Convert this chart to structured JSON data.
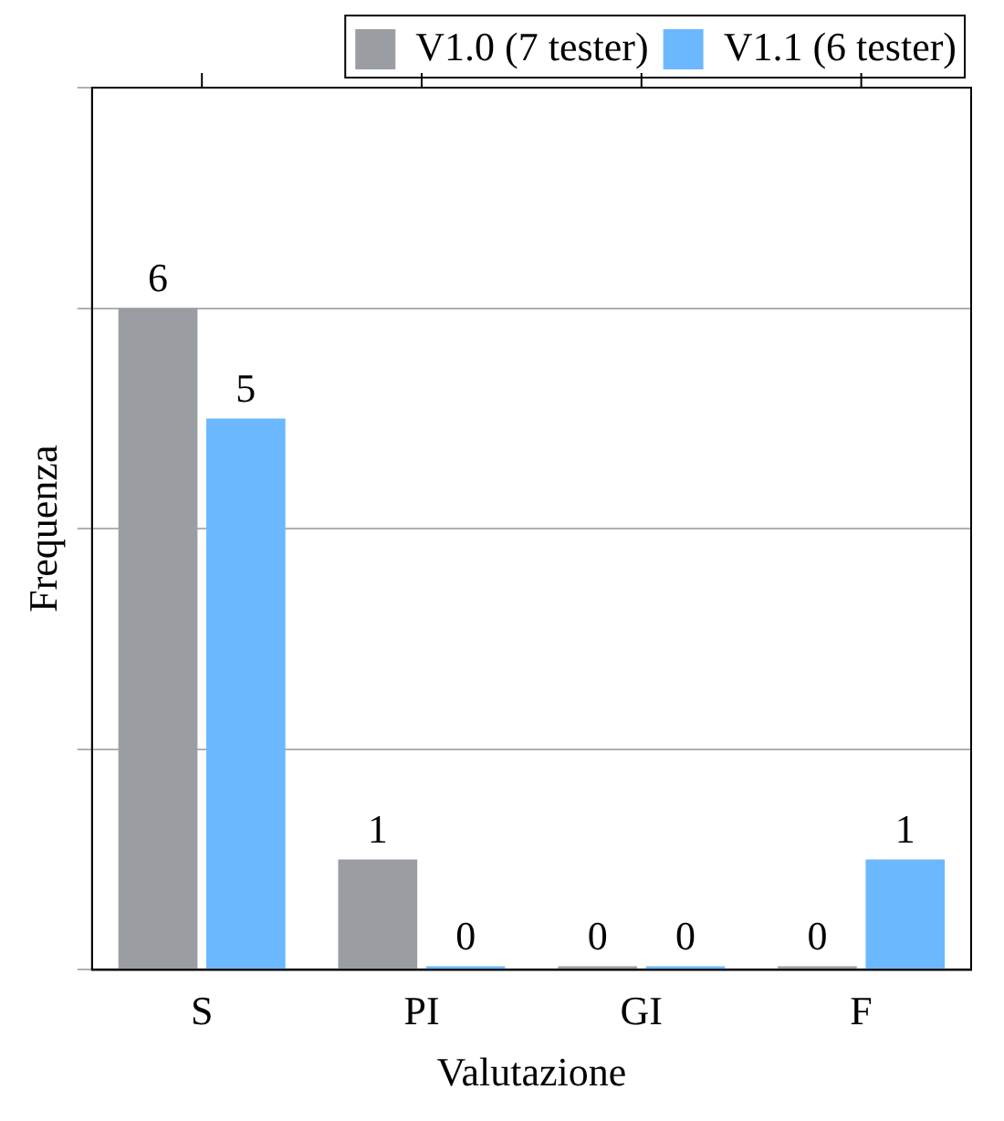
{
  "chart_data": {
    "type": "bar",
    "xlabel": "Valutazione",
    "ylabel": "Frequenza",
    "categories": [
      "S",
      "PI",
      "GI",
      "F"
    ],
    "series": [
      {
        "name": "V1.0 (7 tester)",
        "color": "#9a9ea3",
        "values": [
          6,
          1,
          0,
          0
        ]
      },
      {
        "name": "V1.1 (6 tester)",
        "color": "#6cb8ff",
        "values": [
          5,
          0,
          0,
          1
        ]
      }
    ],
    "ylim": [
      0,
      8
    ],
    "yticks": [
      {
        "value": 0,
        "label": null
      },
      {
        "value": 2,
        "label": null
      },
      {
        "value": 4,
        "label": null
      },
      {
        "value": 6,
        "label": null
      },
      {
        "value": 8,
        "label": null
      }
    ],
    "tick_labels": "x",
    "grid": "y",
    "legend": "top",
    "data_labels": true
  }
}
